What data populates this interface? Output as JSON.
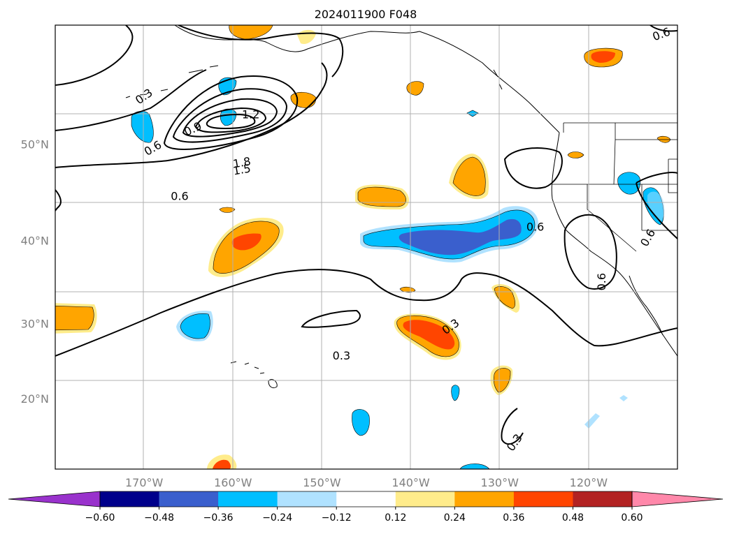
{
  "chart_data": {
    "type": "heatmap",
    "title": "2024011900 F048",
    "projection": "Mercator",
    "xlim": [
      -180,
      -110
    ],
    "ylim": [
      10,
      60
    ],
    "grid": true,
    "x_ticks": [
      -170,
      -160,
      -150,
      -140,
      -130,
      -120
    ],
    "x_tick_labels": [
      "170°W",
      "160°W",
      "150°W",
      "140°W",
      "130°W",
      "120°W"
    ],
    "y_ticks": [
      20,
      30,
      40,
      50
    ],
    "y_tick_labels": [
      "20°N",
      "30°N",
      "40°N",
      "50°N"
    ],
    "colorbar": {
      "orientation": "horizontal",
      "extend": "both",
      "levels": [
        -0.6,
        -0.48,
        -0.36,
        -0.24,
        -0.12,
        0.12,
        0.24,
        0.36,
        0.48,
        0.6
      ],
      "tick_labels": [
        "−0.60",
        "−0.48",
        "−0.36",
        "−0.24",
        "−0.12",
        "0.12",
        "0.24",
        "0.36",
        "0.48",
        "0.60"
      ],
      "colors": [
        "#9932cc",
        "#00008b",
        "#3a5fcd",
        "#00bfff",
        "#b0e2ff",
        "#ffffff",
        "#ffec8b",
        "#ffa500",
        "#ff4500",
        "#b22222",
        "#ff88aa"
      ]
    },
    "contour_labels": [
      {
        "text": "0.3",
        "lon": -170,
        "lat": 54.3,
        "angle": -35
      },
      {
        "text": "0.6",
        "lon": -169,
        "lat": 49.6,
        "angle": -30
      },
      {
        "text": "0.9",
        "lon": -164.5,
        "lat": 51.4,
        "angle": -25
      },
      {
        "text": "1.2",
        "lon": -158,
        "lat": 52.7,
        "angle": 0
      },
      {
        "text": "1.8",
        "lon": -159,
        "lat": 48.2,
        "angle": -10
      },
      {
        "text": "1.5",
        "lon": -159,
        "lat": 47.5,
        "angle": -10
      },
      {
        "text": "0.6",
        "lon": -166,
        "lat": 44.8,
        "angle": 0
      },
      {
        "text": "0.6",
        "lon": -126,
        "lat": 41.5,
        "angle": 0
      },
      {
        "text": "0.6",
        "lon": -118.5,
        "lat": 35.2,
        "angle": -90
      },
      {
        "text": "0.6",
        "lon": -113.3,
        "lat": 40.3,
        "angle": -60
      },
      {
        "text": "0.6",
        "lon": -111.8,
        "lat": 59.3,
        "angle": -20
      },
      {
        "text": "0.3",
        "lon": -135.5,
        "lat": 29.6,
        "angle": -35
      },
      {
        "text": "0.3",
        "lon": -147.8,
        "lat": 25.8,
        "angle": 0
      },
      {
        "text": "0.3",
        "lon": -128.3,
        "lat": 13.8,
        "angle": -55
      }
    ],
    "shaded_regions": [
      {
        "lon": -162,
        "lat": 36.3,
        "category": 0.24,
        "note": "orange blob"
      },
      {
        "lon": -160,
        "lat": 36.6,
        "category": 0.36
      },
      {
        "lon": -178,
        "lat": 27.4,
        "category": 0.24
      },
      {
        "lon": -164,
        "lat": 26.0,
        "category": -0.24
      },
      {
        "lon": -137,
        "lat": 25.4,
        "category": 0.36
      },
      {
        "lon": -139,
        "lat": 36.5,
        "category": -0.24
      },
      {
        "lon": -137,
        "lat": 36.4,
        "category": -0.36
      },
      {
        "lon": -132,
        "lat": 43.0,
        "category": 0.24
      },
      {
        "lon": -140.5,
        "lat": 40.5,
        "category": 0.24
      },
      {
        "lon": -160,
        "lat": 61,
        "category": 0.24
      },
      {
        "lon": -150,
        "lat": 56,
        "category": 0.24
      },
      {
        "lon": -161,
        "lat": 50.0,
        "category": -0.24
      },
      {
        "lon": -170,
        "lat": 48.9,
        "category": -0.24
      },
      {
        "lon": -139,
        "lat": 52.7,
        "category": 0.24
      },
      {
        "lon": -120,
        "lat": 56.2,
        "category": 0.36
      },
      {
        "lon": -130,
        "lat": 29.0,
        "category": 0.24
      },
      {
        "lon": -131,
        "lat": 19.7,
        "category": 0.24
      },
      {
        "lon": -146,
        "lat": 15.3,
        "category": -0.24
      },
      {
        "lon": -161.5,
        "lat": 10.6,
        "category": 0.36
      },
      {
        "lon": -113,
        "lat": 41.0,
        "category": -0.24
      },
      {
        "lon": -115.5,
        "lat": 42.3,
        "category": -0.24
      }
    ]
  }
}
